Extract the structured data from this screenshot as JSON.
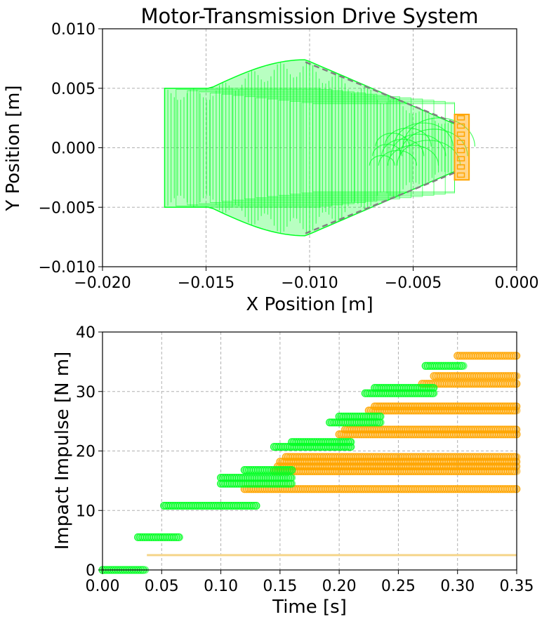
{
  "chart_data": [
    {
      "type": "scatter",
      "title": "Motor-Transmission Drive System",
      "xlabel": "X Position [m]",
      "ylabel": "Y Position [m]",
      "xlim": [
        -0.02,
        0.0
      ],
      "ylim": [
        -0.01,
        0.01
      ],
      "xticks": [
        "−0.020",
        "−0.015",
        "−0.010",
        "−0.005",
        "0.000"
      ],
      "yticks": [
        "−0.010",
        "−0.005",
        "0.000",
        "0.005",
        "0.010"
      ],
      "xtick_values": [
        -0.02,
        -0.015,
        -0.01,
        -0.005,
        0.0
      ],
      "ytick_values": [
        -0.01,
        -0.005,
        0.0,
        0.005,
        0.01
      ],
      "grid": true,
      "colors": {
        "motor": "#00ff22",
        "gear": "#ffa500",
        "guide": "#808080"
      },
      "motor_outline": {
        "back_x": -0.017,
        "back_half_height": 0.005,
        "bulge_x": -0.0102,
        "bulge_half_height": 0.0074,
        "front_x": -0.003,
        "front_half_height": 0.002
      },
      "gear_block": {
        "x_min": -0.003,
        "x_max": -0.0023,
        "y_min": -0.0027,
        "y_max": 0.0028
      },
      "guide_lines": [
        {
          "x": [
            -0.0102,
            -0.003
          ],
          "y": [
            0.0072,
            0.0021
          ]
        },
        {
          "x": [
            -0.0102,
            -0.003
          ],
          "y": [
            -0.0072,
            -0.0021
          ]
        }
      ]
    },
    {
      "type": "scatter",
      "xlabel": "Time [s]",
      "ylabel": "Impact Impulse [N m]",
      "xlim": [
        0.0,
        0.35
      ],
      "ylim": [
        0,
        40
      ],
      "xticks": [
        "0.00",
        "0.05",
        "0.10",
        "0.15",
        "0.20",
        "0.25",
        "0.30",
        "0.35"
      ],
      "yticks": [
        "0",
        "10",
        "20",
        "30",
        "40"
      ],
      "xtick_values": [
        0,
        0.05,
        0.1,
        0.15,
        0.2,
        0.25,
        0.3,
        0.35
      ],
      "ytick_values": [
        0,
        10,
        20,
        30,
        40
      ],
      "grid": true,
      "colors": {
        "green": "#00ff22",
        "orange": "#ffa500",
        "baseline": "#f5d58a"
      },
      "green_segments": [
        {
          "x0": 0.0,
          "x1": 0.036,
          "y": 0.0
        },
        {
          "x0": 0.03,
          "x1": 0.065,
          "y": 5.5
        },
        {
          "x0": 0.052,
          "x1": 0.13,
          "y": 10.8
        },
        {
          "x0": 0.1,
          "x1": 0.16,
          "y": 14.5
        },
        {
          "x0": 0.1,
          "x1": 0.16,
          "y": 15.5
        },
        {
          "x0": 0.12,
          "x1": 0.16,
          "y": 16.8
        },
        {
          "x0": 0.145,
          "x1": 0.21,
          "y": 20.7
        },
        {
          "x0": 0.16,
          "x1": 0.21,
          "y": 21.5
        },
        {
          "x0": 0.192,
          "x1": 0.235,
          "y": 24.8
        },
        {
          "x0": 0.2,
          "x1": 0.235,
          "y": 25.8
        },
        {
          "x0": 0.222,
          "x1": 0.28,
          "y": 29.7
        },
        {
          "x0": 0.23,
          "x1": 0.28,
          "y": 30.6
        },
        {
          "x0": 0.273,
          "x1": 0.305,
          "y": 34.3
        }
      ],
      "orange_segments": [
        {
          "x0": 0.0375,
          "x1": 0.35,
          "y": 2.5,
          "style": "line"
        },
        {
          "x0": 0.12,
          "x1": 0.35,
          "y": 13.6
        },
        {
          "x0": 0.145,
          "x1": 0.35,
          "y": 16.6
        },
        {
          "x0": 0.148,
          "x1": 0.35,
          "y": 17.4
        },
        {
          "x0": 0.15,
          "x1": 0.35,
          "y": 18.2
        },
        {
          "x0": 0.155,
          "x1": 0.35,
          "y": 19.0
        },
        {
          "x0": 0.2,
          "x1": 0.35,
          "y": 22.8
        },
        {
          "x0": 0.205,
          "x1": 0.35,
          "y": 23.6
        },
        {
          "x0": 0.225,
          "x1": 0.35,
          "y": 26.8
        },
        {
          "x0": 0.23,
          "x1": 0.35,
          "y": 27.5
        },
        {
          "x0": 0.27,
          "x1": 0.35,
          "y": 31.3
        },
        {
          "x0": 0.28,
          "x1": 0.35,
          "y": 32.6
        },
        {
          "x0": 0.3,
          "x1": 0.35,
          "y": 36.0
        }
      ]
    }
  ]
}
